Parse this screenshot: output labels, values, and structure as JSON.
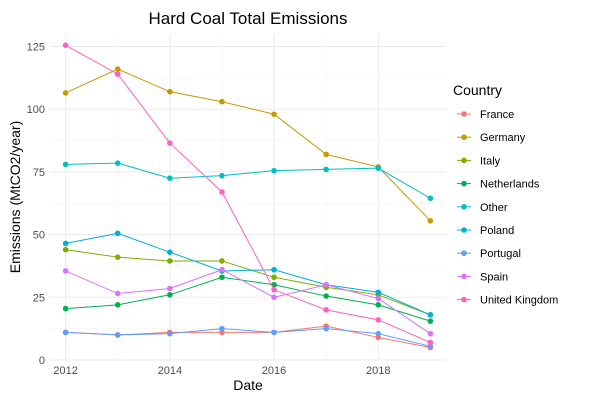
{
  "chart_data": {
    "type": "line",
    "title": "Hard Coal Total Emissions",
    "xlabel": "Date",
    "ylabel": "Emissions (MtCO2/year)",
    "xlim": [
      2011.7,
      2019.3
    ],
    "ylim": [
      0,
      130
    ],
    "xticks": [
      2012,
      2014,
      2016,
      2018
    ],
    "yticks": [
      0,
      25,
      50,
      75,
      100,
      125
    ],
    "grid": true,
    "legend": {
      "title": "Country",
      "position": "right"
    },
    "x": [
      2012,
      2013,
      2014,
      2015,
      2016,
      2017,
      2018,
      2019
    ],
    "series": [
      {
        "name": "France",
        "color": "#F8766D",
        "values": [
          11,
          10,
          11,
          11,
          11,
          13.5,
          9,
          5
        ]
      },
      {
        "name": "Germany",
        "color": "#C49A00",
        "values": [
          106.5,
          116,
          107,
          103,
          98,
          82,
          77,
          55.5
        ]
      },
      {
        "name": "Italy",
        "color": "#7CAE00",
        "values": [
          44,
          41,
          39.5,
          39.5,
          33,
          29,
          26,
          18
        ]
      },
      {
        "name": "Netherlands",
        "color": "#00B050",
        "values": [
          20.5,
          22,
          26,
          33,
          30,
          25.5,
          22,
          15.5
        ]
      },
      {
        "name": "Other",
        "color": "#00BFC4",
        "values": [
          78,
          78.5,
          72.5,
          73.5,
          75.5,
          76,
          76.5,
          64.5
        ]
      },
      {
        "name": "Poland",
        "color": "#00B0D8",
        "values": [
          46.5,
          50.5,
          43,
          35.5,
          36,
          30,
          27,
          18
        ]
      },
      {
        "name": "Portugal",
        "color": "#619CFF",
        "values": [
          11,
          10,
          10.5,
          12.5,
          11,
          12.5,
          10.5,
          5.5
        ]
      },
      {
        "name": "Spain",
        "color": "#DB72FB",
        "values": [
          35.5,
          26.5,
          28.5,
          36,
          25,
          30,
          24.5,
          10.5
        ]
      },
      {
        "name": "United Kingdom",
        "color": "#FF61C3",
        "values": [
          125.5,
          114,
          86.5,
          67,
          28,
          20,
          16,
          7
        ]
      }
    ]
  }
}
